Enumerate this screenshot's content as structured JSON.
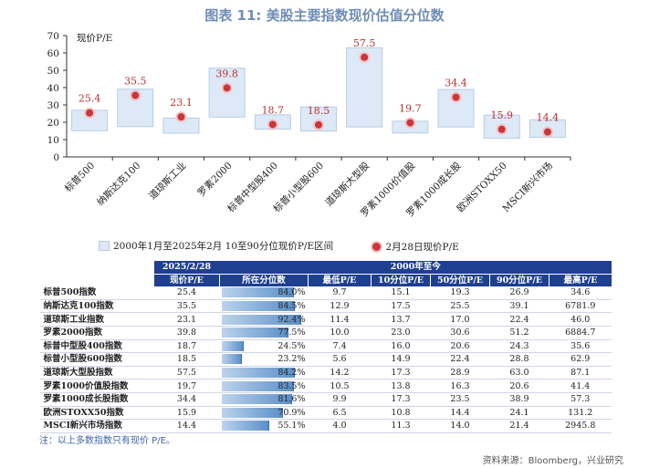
{
  "title": "图表 11: 美股主要指数现价估值分位数",
  "chart_data": {
    "type": "floating-bar-with-points",
    "ylabel": "现价P/E",
    "ylim": [
      0,
      70
    ],
    "yticks": [
      0,
      10,
      20,
      30,
      40,
      50,
      60,
      70
    ],
    "categories": [
      "标普500",
      "纳斯达克100",
      "道琼斯工业",
      "罗素2000",
      "标普中型股400",
      "标普小型股600",
      "道琼斯大型股",
      "罗素1000价值股",
      "罗素1000成长股",
      "欧洲STOXX50",
      "MSCI新兴市场"
    ],
    "range_low": [
      15.1,
      17.5,
      13.7,
      23.0,
      16.0,
      14.9,
      17.3,
      13.8,
      17.3,
      10.8,
      11.3
    ],
    "range_high": [
      26.9,
      39.1,
      22.4,
      51.2,
      24.3,
      28.8,
      63.0,
      20.6,
      38.9,
      24.1,
      21.4
    ],
    "current": [
      25.4,
      35.5,
      23.1,
      39.8,
      18.7,
      18.5,
      57.5,
      19.7,
      34.4,
      15.9,
      14.4
    ],
    "current_labels": [
      "25.4",
      "35.5",
      "23.1",
      "39.8",
      "18.7",
      "18.5",
      "57.5",
      "19.7",
      "34.4",
      "15.9",
      "14.4"
    ],
    "legend": [
      {
        "label": "2000年1月至2025年2月 10至90分位现价P/E区间",
        "color": "#dde9f6"
      },
      {
        "label": "2月28日现价P/E",
        "color": "#c9363c"
      }
    ]
  },
  "table": {
    "header_date": "2025/2/28",
    "header_current": "现价P/E",
    "header_since": "2000年至今",
    "columns": [
      "所在分位数",
      "最低P/E",
      "10分位P/E",
      "50分位P/E",
      "90分位P/E",
      "最高P/E"
    ],
    "rows": [
      {
        "name": "标普500指数",
        "pe": "25.4",
        "pct": 84.0,
        "pct_label": "84.0%",
        "min": "9.7",
        "p10": "15.1",
        "p50": "19.3",
        "p90": "26.9",
        "max": "34.6"
      },
      {
        "name": "纳斯达克100指数",
        "pe": "35.5",
        "pct": 84.5,
        "pct_label": "84.5%",
        "min": "12.9",
        "p10": "17.5",
        "p50": "25.5",
        "p90": "39.1",
        "max": "6781.9"
      },
      {
        "name": "道琼斯工业指数",
        "pe": "23.1",
        "pct": 92.4,
        "pct_label": "92.4%",
        "min": "11.4",
        "p10": "13.7",
        "p50": "17.0",
        "p90": "22.4",
        "max": "46.0"
      },
      {
        "name": "罗素2000指数",
        "pe": "39.8",
        "pct": 77.5,
        "pct_label": "77.5%",
        "min": "10.0",
        "p10": "23.0",
        "p50": "30.6",
        "p90": "51.2",
        "max": "6884.7"
      },
      {
        "name": "标普中型股400指数",
        "pe": "18.7",
        "pct": 24.5,
        "pct_label": "24.5%",
        "min": "7.4",
        "p10": "16.0",
        "p50": "20.6",
        "p90": "24.3",
        "max": "35.6"
      },
      {
        "name": "标普小型股600指数",
        "pe": "18.5",
        "pct": 23.2,
        "pct_label": "23.2%",
        "min": "5.6",
        "p10": "14.9",
        "p50": "22.4",
        "p90": "28.8",
        "max": "62.9"
      },
      {
        "name": "道琼斯大型股指数",
        "pe": "57.5",
        "pct": 84.2,
        "pct_label": "84.2%",
        "min": "14.2",
        "p10": "17.3",
        "p50": "28.9",
        "p90": "63.0",
        "max": "87.1"
      },
      {
        "name": "罗素1000价值股指数",
        "pe": "19.7",
        "pct": 83.5,
        "pct_label": "83.5%",
        "min": "10.5",
        "p10": "13.8",
        "p50": "16.3",
        "p90": "20.6",
        "max": "41.4"
      },
      {
        "name": "罗素1000成长股指数",
        "pe": "34.4",
        "pct": 81.6,
        "pct_label": "81.6%",
        "min": "9.9",
        "p10": "17.3",
        "p50": "23.5",
        "p90": "38.9",
        "max": "57.3"
      },
      {
        "name": "欧洲STOXX50指数",
        "pe": "15.9",
        "pct": 70.9,
        "pct_label": "70.9%",
        "min": "6.5",
        "p10": "10.8",
        "p50": "14.4",
        "p90": "24.1",
        "max": "131.2"
      },
      {
        "name": "MSCI新兴市场指数",
        "pe": "14.4",
        "pct": 55.1,
        "pct_label": "55.1%",
        "min": "4.0",
        "p10": "11.3",
        "p50": "14.0",
        "p90": "21.4",
        "max": "2945.8"
      }
    ]
  },
  "note": "注：以上多数指数只有现价 P/E。",
  "source": "资料来源：Bloomberg，兴业研究"
}
